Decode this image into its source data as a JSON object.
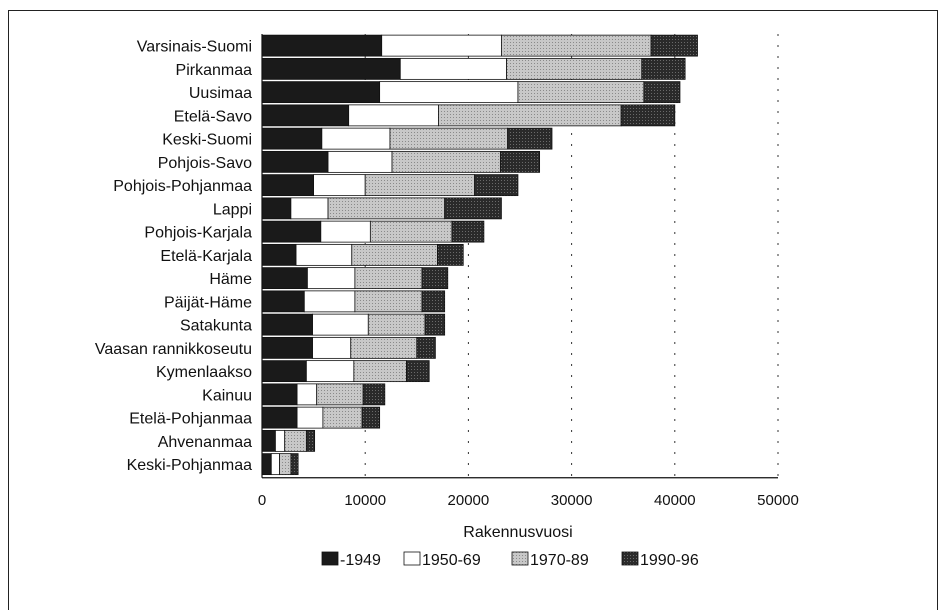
{
  "chart_data": {
    "type": "bar",
    "orientation": "horizontal",
    "stacked": true,
    "title": "",
    "xlabel": "Rakennusvuosi",
    "ylabel": "",
    "xlim": [
      0,
      50000
    ],
    "xticks": [
      0,
      10000,
      20000,
      30000,
      40000,
      50000
    ],
    "grid": "vertical-dashed",
    "legend_position": "bottom",
    "categories": [
      "Varsinais-Suomi",
      "Pirkanmaa",
      "Uusimaa",
      "Etelä-Savo",
      "Keski-Suomi",
      "Pohjois-Savo",
      "Pohjois-Pohjanmaa",
      "Lappi",
      "Pohjois-Karjala",
      "Etelä-Karjala",
      "Häme",
      "Päijät-Häme",
      "Satakunta",
      "Vaasan rannikkoseutu",
      "Kymenlaakso",
      "Kainuu",
      "Etelä-Pohjanmaa",
      "Ahvenanmaa",
      "Keski-Pohjanmaa"
    ],
    "series": [
      {
        "name": "-1949",
        "color": "#1a1a1a",
        "values": [
          11600,
          13400,
          11400,
          8400,
          5800,
          6400,
          5000,
          2800,
          5700,
          3300,
          4400,
          4100,
          4900,
          4900,
          4300,
          3400,
          3400,
          1300,
          900
        ]
      },
      {
        "name": "1950-69",
        "color": "#ffffff",
        "values": [
          11600,
          10300,
          13400,
          8700,
          6600,
          6200,
          5000,
          3600,
          4800,
          5400,
          4600,
          4900,
          5400,
          3700,
          4600,
          1900,
          2500,
          900,
          800
        ]
      },
      {
        "name": "1970-89",
        "color": "#c8c8c8",
        "values": [
          14500,
          13100,
          12200,
          17700,
          11400,
          10500,
          10600,
          11300,
          7900,
          8300,
          6500,
          6500,
          5500,
          6400,
          5100,
          4500,
          3800,
          2100,
          1100
        ]
      },
      {
        "name": "1990-96",
        "color": "#2e2e2e",
        "values": [
          4500,
          4200,
          3500,
          5200,
          4300,
          3800,
          4200,
          5500,
          3100,
          2500,
          2500,
          2200,
          1900,
          1800,
          2200,
          2100,
          1700,
          800,
          700
        ]
      }
    ]
  }
}
